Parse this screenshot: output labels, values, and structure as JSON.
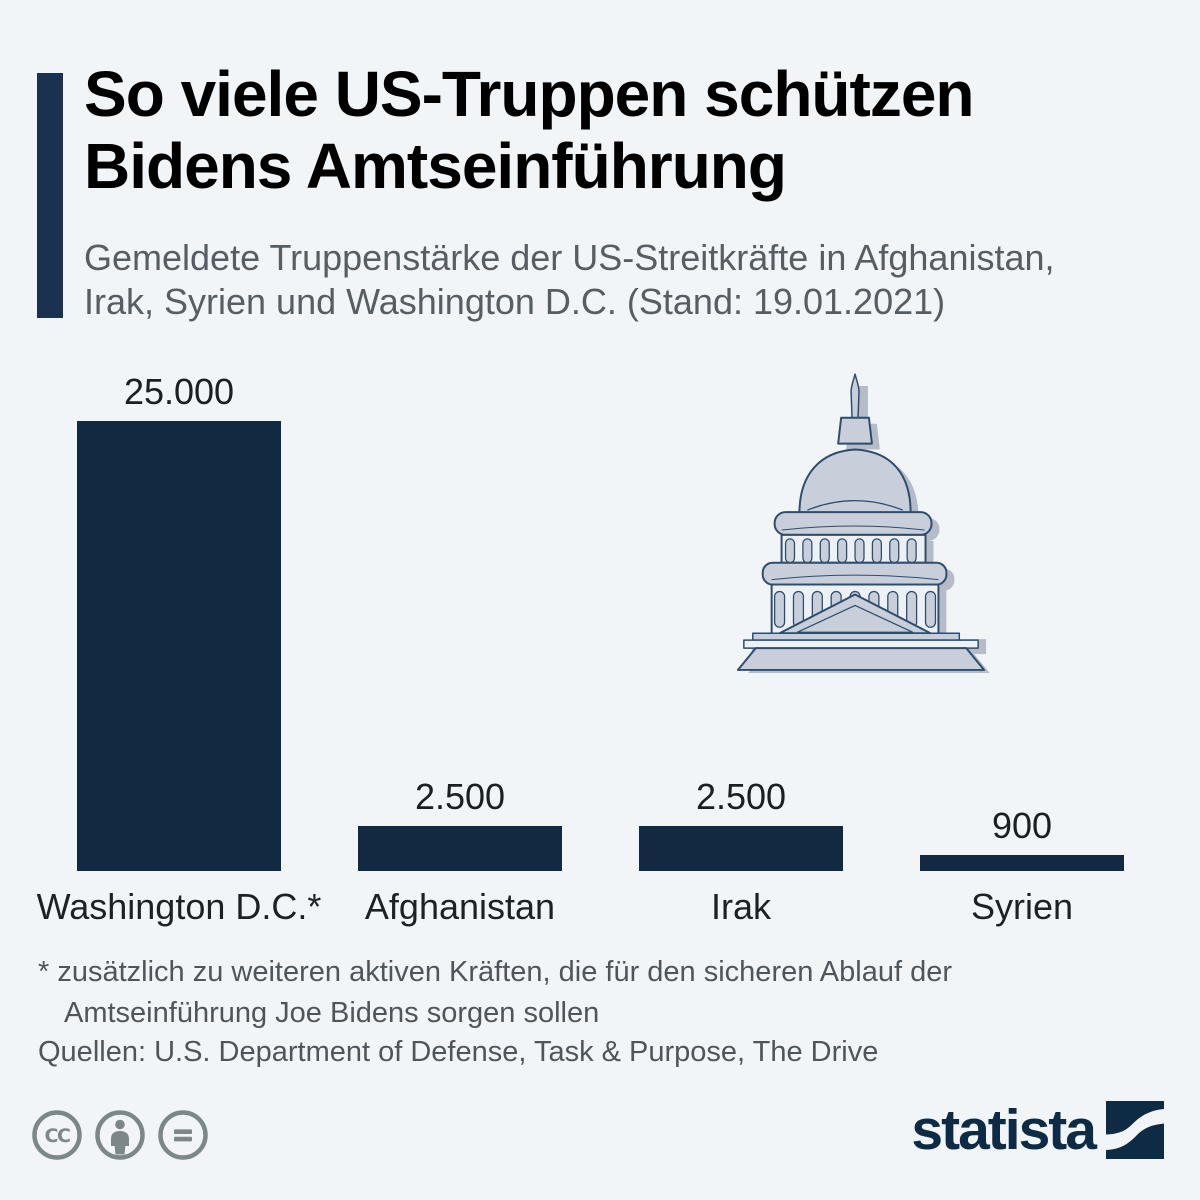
{
  "header": {
    "title": "So viele US-Truppen schützen\nBidens Amtseinführung",
    "subtitle": "Gemeldete Truppenstärke der US-Streitkräfte in Afghanistan,\nIrak, Syrien und Washington D.C. (Stand: 19.01.2021)"
  },
  "chart_data": {
    "type": "bar",
    "categories": [
      "Washington D.C.*",
      "Afghanistan",
      "Irak",
      "Syrien"
    ],
    "values": [
      25000,
      2500,
      2500,
      900
    ],
    "value_labels": [
      "25.000",
      "2.500",
      "2.500",
      "900"
    ],
    "title": "",
    "xlabel": "",
    "ylabel": "",
    "ylim": [
      0,
      25000
    ],
    "grid": false,
    "legend": false,
    "bar_color": "#112a41"
  },
  "footnote": "* zusätzlich zu weiteren aktiven Kräften, die für den sicheren Ablauf der\nAmtseinführung Joe Bidens sorgen sollen",
  "source": "Quellen: U.S. Department of Defense, Task & Purpose, The Drive",
  "branding": {
    "logo_text": "statista"
  },
  "icons": {
    "decorative": "capitol-building-icon",
    "license": [
      "cc-icon",
      "attribution-person-icon",
      "no-derivatives-icon"
    ]
  },
  "colors": {
    "background": "#f2f5f8",
    "bar": "#112a41",
    "accent_bar": "#1b3150",
    "title": "#000000",
    "subtitle": "#575e63",
    "labels": "#1c2126",
    "footnote": "#4e565c",
    "license_icon": "#7d8787",
    "logo_navy": "#0e2b45",
    "capitol_fill": "#c9cfda",
    "capitol_shadow": "#b5bcc8",
    "capitol_outline": "#2e4d6d",
    "capitol_light": "#edf1f6"
  }
}
